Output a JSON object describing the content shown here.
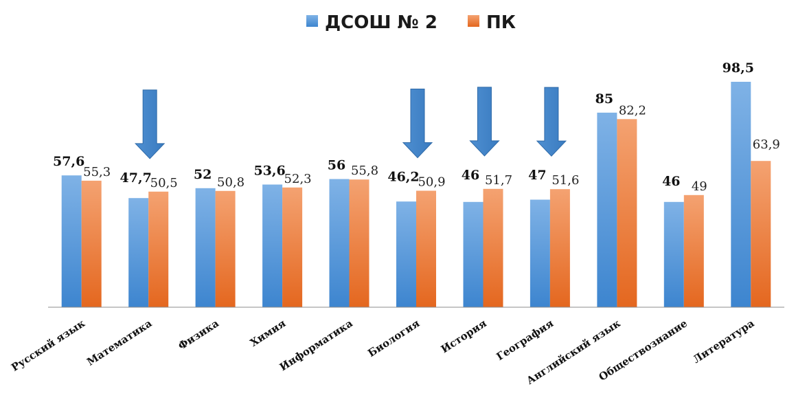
{
  "chart_data": {
    "type": "bar",
    "categories": [
      "Русский язык",
      "Математика",
      "Физика",
      "Химия",
      "Информатика",
      "Биология",
      "История",
      "География",
      "Английский язык",
      "Обществознание",
      "Литература"
    ],
    "series": [
      {
        "name": "ДСОШ № 2",
        "values": [
          57.6,
          47.7,
          52,
          53.6,
          56,
          46.2,
          46,
          47,
          85,
          46,
          98.5
        ],
        "labels": [
          "57,6",
          "47,7",
          "52",
          "53,6",
          "56",
          "46,2",
          "46",
          "47",
          "85",
          "46",
          "98,5"
        ],
        "color": "#5b9bd5"
      },
      {
        "name": "ПК",
        "values": [
          55.3,
          50.5,
          50.8,
          52.3,
          55.8,
          50.9,
          51.7,
          51.6,
          82.2,
          49,
          63.9
        ],
        "labels": [
          "55,3",
          "50,5",
          "50,8",
          "52,3",
          "55,8",
          "50,9",
          "51,7",
          "51,6",
          "82,2",
          "49",
          "63,9"
        ],
        "color": "#ed7d31"
      }
    ],
    "ylim": [
      0,
      100
    ],
    "grid": false,
    "legend": "top-center",
    "annotations": {
      "down_arrows_over": [
        "Математика",
        "Биология",
        "История",
        "География"
      ]
    }
  }
}
